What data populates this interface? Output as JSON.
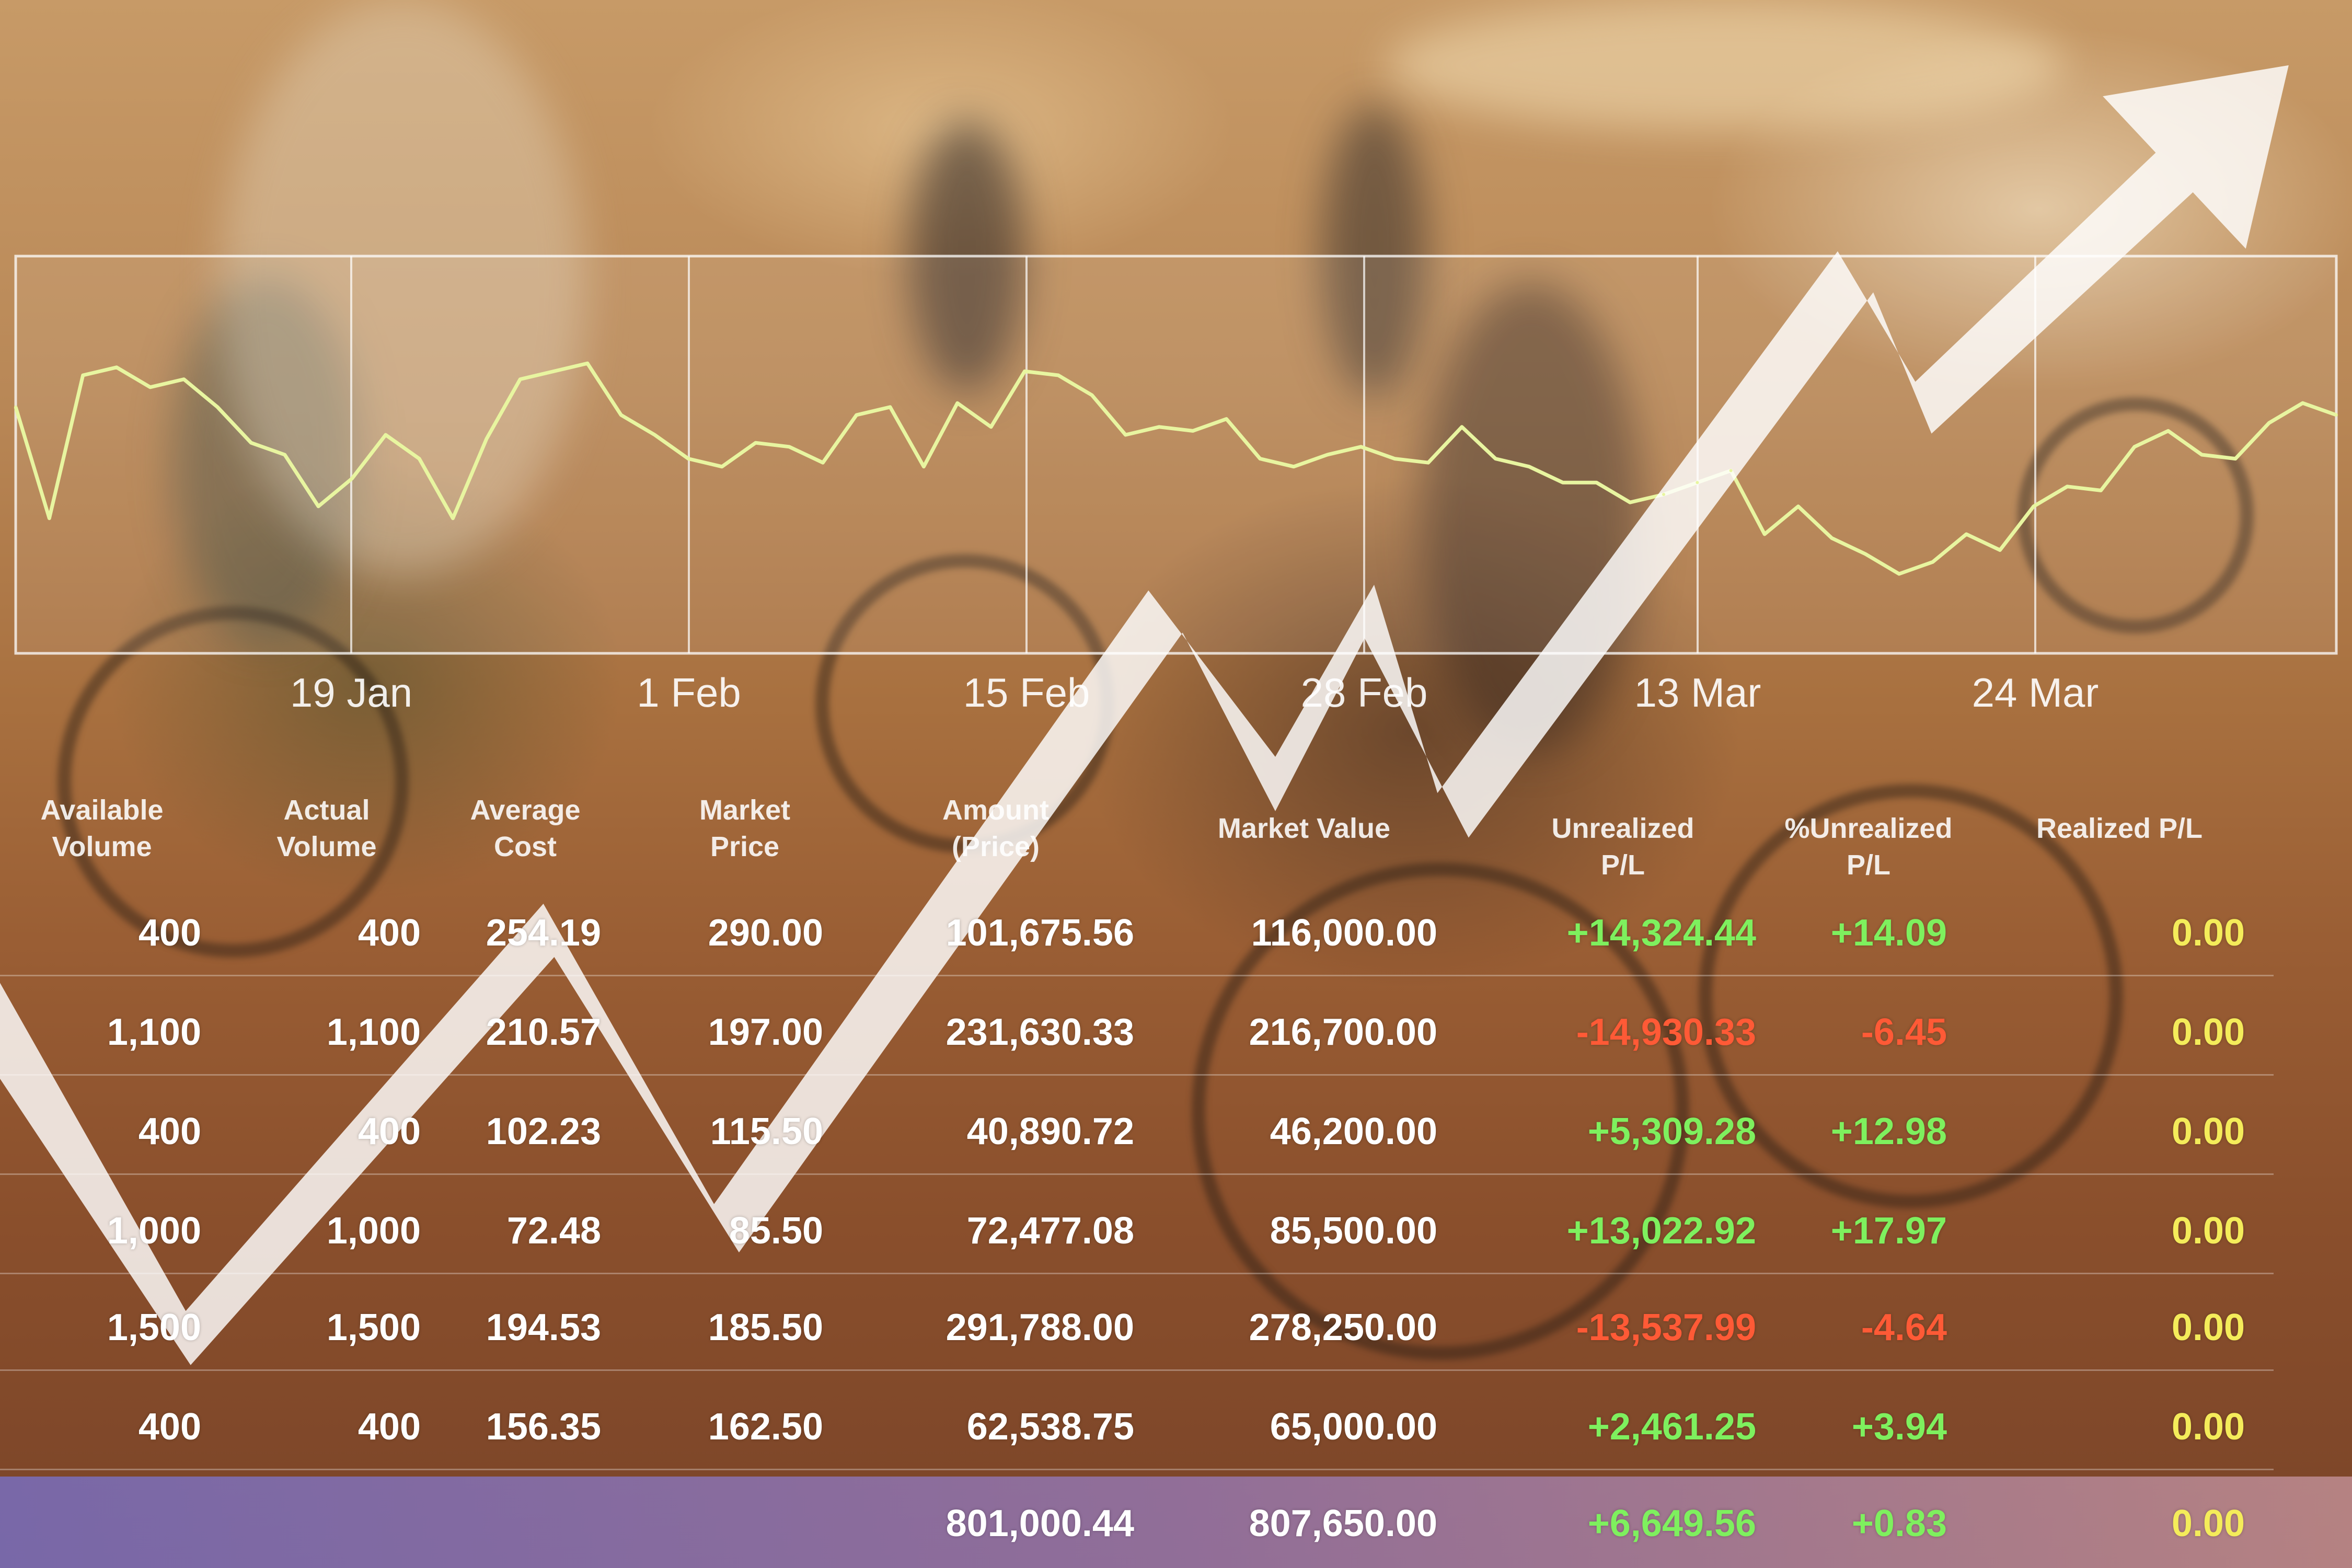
{
  "chart_data": [
    {
      "type": "line",
      "x_ticks": [
        "19 Jan",
        "1 Feb",
        "15 Feb",
        "28 Feb",
        "13 Mar",
        "24 Mar"
      ],
      "series": [
        {
          "values": [
            62,
            34,
            70,
            72,
            67,
            69,
            62,
            53,
            50,
            37,
            44,
            55,
            49,
            34,
            54,
            69,
            71,
            73,
            60,
            55,
            49,
            47,
            53,
            52,
            48,
            60,
            62,
            47,
            63,
            57,
            71,
            70,
            65,
            55,
            57,
            56,
            59,
            49,
            47,
            50,
            52,
            49,
            48,
            57,
            49,
            47,
            43,
            43,
            38,
            40,
            43,
            46,
            30,
            37,
            29,
            25,
            20,
            23,
            30,
            26,
            37,
            42,
            41,
            52,
            56,
            50,
            49,
            58,
            63,
            60
          ]
        }
      ],
      "trend_arrow": "up",
      "grid": "vertical"
    },
    {
      "type": "table",
      "columns": [
        "Available\nVolume",
        "Actual\nVolume",
        "Average\nCost",
        "Market\nPrice",
        "Amount\n(Price)",
        "Market Value",
        "Unrealized P/L",
        "%Unrealized P/L",
        "Realized P/L"
      ],
      "rows": [
        [
          "400",
          "400",
          "254.19",
          "290.00",
          "101,675.56",
          "116,000.00",
          "+14,324.44",
          "+14.09",
          "0.00"
        ],
        [
          "1,100",
          "1,100",
          "210.57",
          "197.00",
          "231,630.33",
          "216,700.00",
          "-14,930.33",
          "-6.45",
          "0.00"
        ],
        [
          "400",
          "400",
          "102.23",
          "115.50",
          "40,890.72",
          "46,200.00",
          "+5,309.28",
          "+12.98",
          "0.00"
        ],
        [
          "1,000",
          "1,000",
          "72.48",
          "85.50",
          "72,477.08",
          "85,500.00",
          "+13,022.92",
          "+17.97",
          "0.00"
        ],
        [
          "1,500",
          "1,500",
          "194.53",
          "185.50",
          "291,788.00",
          "278,250.00",
          "-13,537.99",
          "-4.64",
          "0.00"
        ],
        [
          "400",
          "400",
          "156.35",
          "162.50",
          "62,538.75",
          "65,000.00",
          "+2,461.25",
          "+3.94",
          "0.00"
        ]
      ],
      "total_row": [
        "",
        "",
        "",
        "",
        "801,000.44",
        "807,650.00",
        "+6,649.56",
        "+0.83",
        "0.00"
      ]
    }
  ],
  "colors": {
    "positive": "#7ef05e",
    "negative": "#ff5a36",
    "realized": "#f4ec5a",
    "line": "#e8f5a0",
    "arrow": "#ffffff"
  }
}
